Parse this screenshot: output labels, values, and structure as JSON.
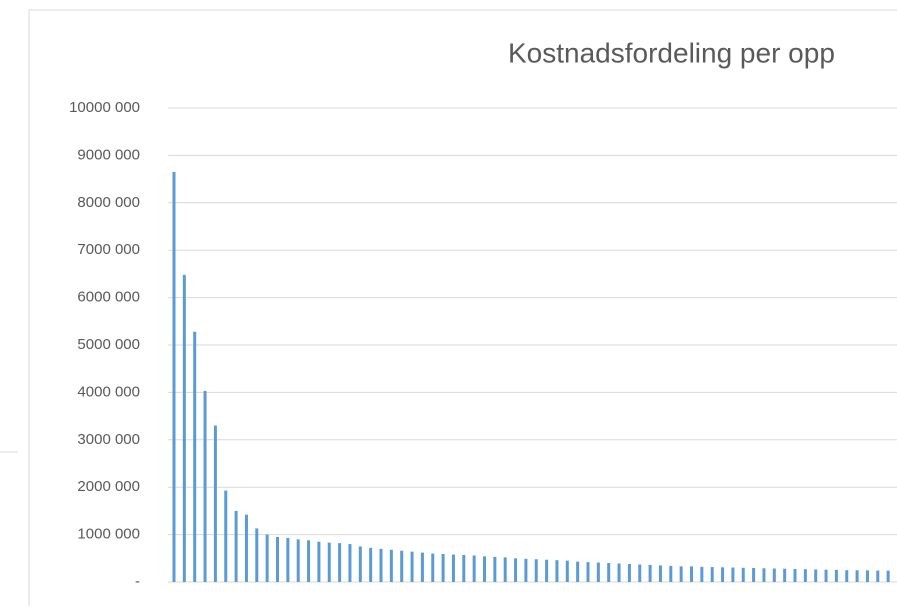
{
  "chart_data": {
    "type": "bar",
    "title": "Kostnadsfordeling per opp",
    "categories": [
      null,
      null,
      null,
      null,
      null,
      null,
      null,
      null,
      null,
      null,
      null,
      null,
      null,
      null,
      null,
      null,
      null,
      null,
      null,
      null,
      null,
      null,
      null,
      null,
      null,
      null,
      null,
      null,
      null,
      null,
      null,
      null,
      null,
      null,
      null,
      null,
      null,
      null,
      null,
      null,
      null,
      null,
      null,
      null,
      null,
      null,
      null,
      null,
      null,
      null,
      null,
      null,
      null,
      null,
      null,
      null,
      null,
      null,
      null,
      null,
      null,
      null,
      null,
      null,
      null,
      null,
      null,
      null,
      null,
      null
    ],
    "values": [
      8650000,
      6480000,
      5280000,
      4030000,
      3300000,
      1930000,
      1500000,
      1420000,
      1130000,
      1000000,
      950000,
      930000,
      900000,
      880000,
      850000,
      830000,
      820000,
      800000,
      750000,
      720000,
      700000,
      680000,
      660000,
      640000,
      620000,
      600000,
      590000,
      580000,
      570000,
      560000,
      540000,
      530000,
      520000,
      500000,
      490000,
      480000,
      470000,
      460000,
      450000,
      430000,
      420000,
      410000,
      400000,
      390000,
      380000,
      370000,
      360000,
      350000,
      340000,
      330000,
      330000,
      320000,
      315000,
      310000,
      305000,
      300000,
      295000,
      290000,
      285000,
      280000,
      275000,
      270000,
      265000,
      260000,
      255000,
      250000,
      248000,
      245000,
      242000,
      240000
    ],
    "color": "#5b9bd5",
    "ylim": [
      0,
      10000000
    ],
    "yticks": [
      {
        "value": 0,
        "label": "-"
      },
      {
        "value": 1000000,
        "label": "1000 000"
      },
      {
        "value": 2000000,
        "label": "2000 000"
      },
      {
        "value": 3000000,
        "label": "3000 000"
      },
      {
        "value": 4000000,
        "label": "4000 000"
      },
      {
        "value": 5000000,
        "label": "5000 000"
      },
      {
        "value": 6000000,
        "label": "6000 000"
      },
      {
        "value": 7000000,
        "label": "7000 000"
      },
      {
        "value": 8000000,
        "label": "8000 000"
      },
      {
        "value": 9000000,
        "label": "9000 000"
      },
      {
        "value": 10000000,
        "label": "10000 000"
      }
    ],
    "grid": true
  }
}
